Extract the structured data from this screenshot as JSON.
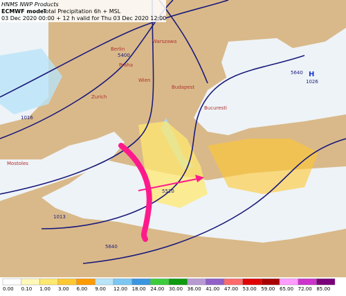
{
  "header": {
    "source": "HNMS NWP Products",
    "model": "ECMWF model",
    "product": "Total Precipitation 6h + MSL",
    "run": "03 Dec 2020 00:00 + 12 h valid for Thu 03 Dec 2020 12:00"
  },
  "map": {
    "cities": [
      "Berlin",
      "Warszawa",
      "Praha",
      "Wien",
      "Budapest",
      "Zurich",
      "Bucuresti",
      "Mostoles"
    ],
    "contour_labels": [
      "5400",
      "5520",
      "5640",
      "5640",
      "1013",
      "1026",
      "1016"
    ],
    "high_label": "H"
  },
  "legend": {
    "labels": [
      "0.00",
      "0.10",
      "1.00",
      "3.00",
      "6.00",
      "9.00",
      "12.00",
      "18.00",
      "24.00",
      "30.00",
      "36.00",
      "41.00",
      "47.00",
      "53.00",
      "59.00",
      "65.00",
      "72.00",
      "85.00"
    ],
    "colors": [
      "#ffffff",
      "#fff8b8",
      "#ffe870",
      "#ffc830",
      "#ff9a00",
      "#b8e4f8",
      "#7cc6f2",
      "#3a96e0",
      "#3ccc3c",
      "#0f9a0f",
      "#b89ad2",
      "#9160c8",
      "#ff6a6a",
      "#e00000",
      "#a80000",
      "#ff9cff",
      "#cc33cc",
      "#7a007a"
    ]
  }
}
